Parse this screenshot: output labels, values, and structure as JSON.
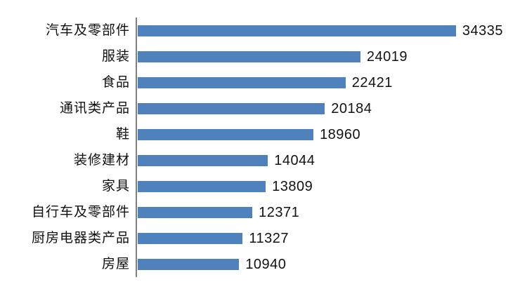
{
  "chart_data": {
    "type": "bar",
    "orientation": "horizontal",
    "title": "",
    "xlabel": "",
    "ylabel": "",
    "categories": [
      "汽车及零部件",
      "服装",
      "食品",
      "通讯类产品",
      "鞋",
      "装修建材",
      "家具",
      "自行车及零部件",
      "厨房电器类产品",
      "房屋"
    ],
    "values": [
      34335,
      24019,
      22421,
      20184,
      18960,
      14044,
      13809,
      12371,
      11327,
      10940
    ],
    "value_labels": [
      "34335",
      "24019",
      "22421",
      "20184",
      "18960",
      "14044",
      "13809",
      "12371",
      "11327",
      "10940"
    ],
    "xlim": [
      0,
      42000
    ],
    "grid": false,
    "legend": false,
    "data_labels_position": "outside-end",
    "bar_color": "#4F81BD",
    "axis_color": "#808080",
    "label_color": "#101010",
    "background_color": "#ffffff"
  }
}
